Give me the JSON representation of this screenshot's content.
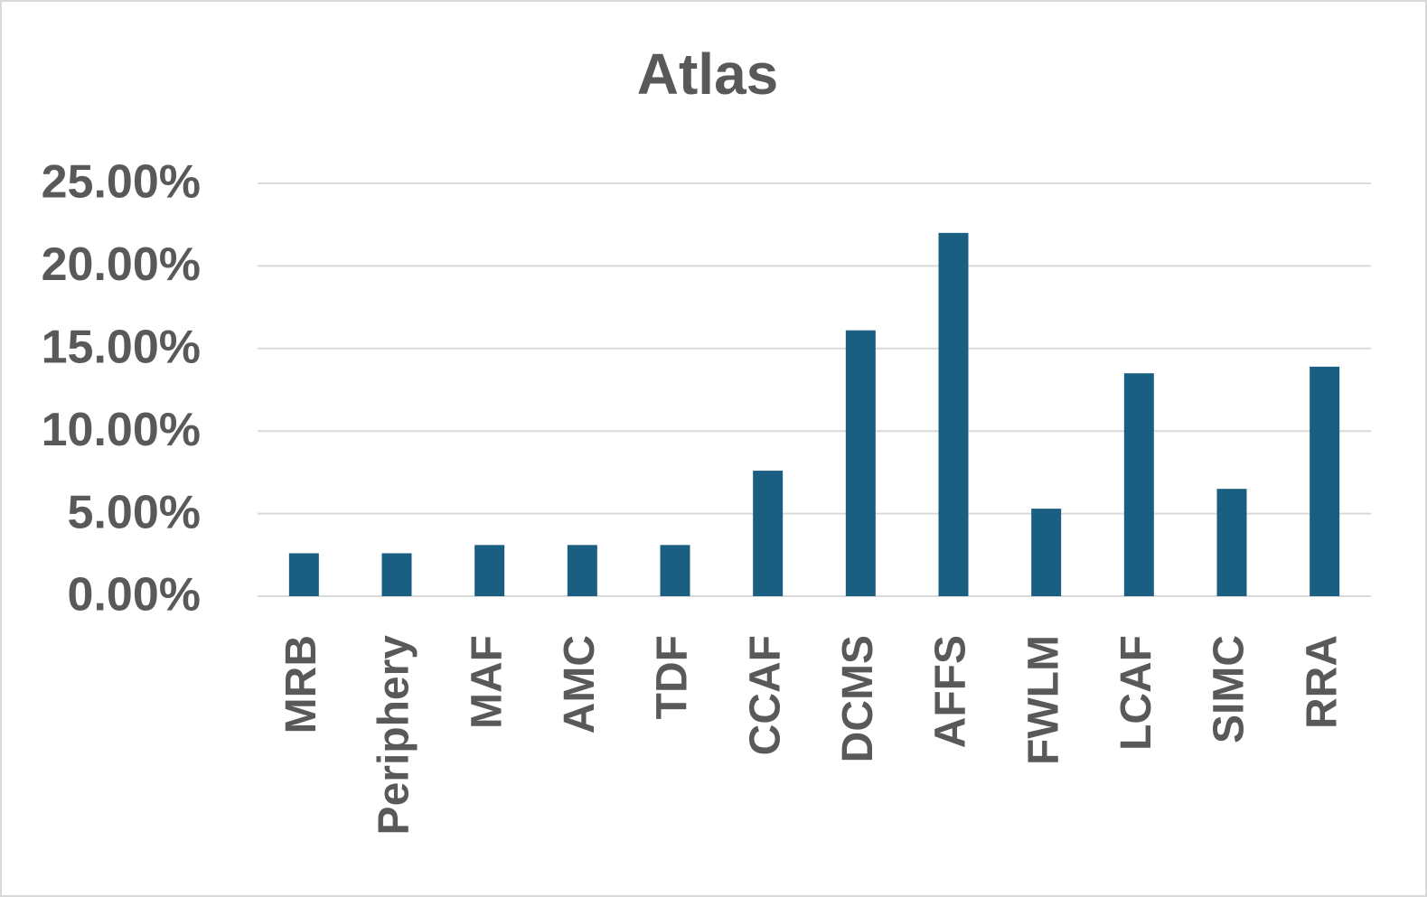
{
  "chart_data": {
    "type": "bar",
    "title": "Atlas",
    "categories": [
      "MRB",
      "Periphery",
      "MAF",
      "AMC",
      "TDF",
      "CCAF",
      "DCMS",
      "AFFS",
      "FWLM",
      "LCAF",
      "SIMC",
      "RRA"
    ],
    "values": [
      2.6,
      2.6,
      3.1,
      3.1,
      3.1,
      7.6,
      16.1,
      22.0,
      5.3,
      13.5,
      6.5,
      13.9
    ],
    "color": "#1a5f82",
    "ylim": [
      0,
      25
    ],
    "yticks": [
      {
        "value": 0,
        "label": "0.00%"
      },
      {
        "value": 5,
        "label": "5.00%"
      },
      {
        "value": 10,
        "label": "10.00%"
      },
      {
        "value": 15,
        "label": "15.00%"
      },
      {
        "value": 20,
        "label": "20.00%"
      },
      {
        "value": 25,
        "label": "25.00%"
      }
    ],
    "grid": true
  }
}
